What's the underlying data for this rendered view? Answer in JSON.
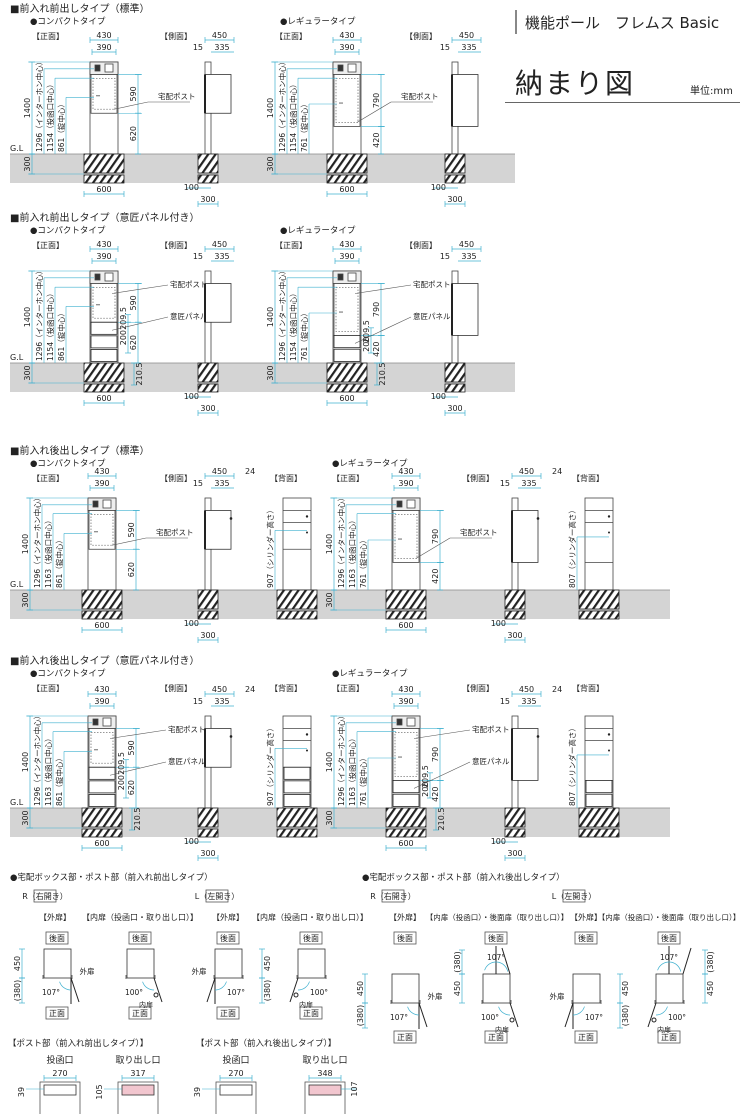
{
  "header": {
    "product": "機能ポール　フレムス Basic",
    "title": "納まり図",
    "unit": "単位:mm"
  },
  "common": {
    "front": "【正面】",
    "side": "【側面】",
    "back": "【背面】",
    "gl": "G.L",
    "w_outer": "430",
    "w_inner": "390",
    "height": "1400",
    "depth": "300",
    "foundation": "600",
    "side_total": "450",
    "side_a": "15",
    "side_b": "335",
    "side_handle": "24",
    "side_base_a": "100",
    "side_base_b": "300",
    "post": "宅配ポスト",
    "panel": "意匠パネル",
    "panel_a": "209.5",
    "panel_b": "200",
    "panel_c": "210.5"
  },
  "sections": [
    {
      "title": "■前入れ前出しタイプ（標準）",
      "types": [
        {
          "name": "●コンパクトタイプ",
          "dims": [
            "1296（インターホン中心）",
            "1154（投函口中心）",
            "861（錠中心）"
          ],
          "box": "590",
          "lower": "620"
        },
        {
          "name": "●レギュラータイプ",
          "dims": [
            "1296（インターホン中心）",
            "1154（投函口中心）",
            "761（錠中心）"
          ],
          "box": "790",
          "lower": "420"
        }
      ]
    },
    {
      "title": "■前入れ前出しタイプ（意匠パネル付き）",
      "types": [
        {
          "name": "●コンパクトタイプ",
          "dims": [
            "1296（インターホン中心）",
            "1154（投函口中心）",
            "861（錠中心）"
          ],
          "box": "590",
          "lower": "620"
        },
        {
          "name": "●レギュラータイプ",
          "dims": [
            "1296（インターホン中心）",
            "1154（投函口中心）",
            "761（錠中心）"
          ],
          "box": "790",
          "lower": "420"
        }
      ]
    },
    {
      "title": "■前入れ後出しタイプ（標準）",
      "types": [
        {
          "name": "●コンパクトタイプ",
          "dims": [
            "1296（インターホン中心）",
            "1163（投函口中心）",
            "861（錠中心）"
          ],
          "box": "590",
          "lower": "620",
          "cylinder": "907（シリンダー高さ）"
        },
        {
          "name": "●レギュラータイプ",
          "dims": [
            "1296（インターホン中心）",
            "1163（投函口中心）",
            "761（錠中心）"
          ],
          "box": "790",
          "lower": "420",
          "cylinder": "807（シリンダー高さ）"
        }
      ]
    },
    {
      "title": "■前入れ後出しタイプ（意匠パネル付き）",
      "types": [
        {
          "name": "●コンパクトタイプ",
          "dims": [
            "1296（インターホン中心）",
            "1163（投函口中心）",
            "861（錠中心）"
          ],
          "box": "590",
          "lower": "620",
          "cylinder": "907（シリンダー高さ）"
        },
        {
          "name": "●レギュラータイプ",
          "dims": [
            "1296（インターホン中心）",
            "1163（投函口中心）",
            "761（錠中心）"
          ],
          "box": "790",
          "lower": "420",
          "cylinder": "807（シリンダー高さ）"
        }
      ]
    }
  ],
  "details": {
    "front_front_title": "●宅配ボックス部・ポスト部（前入れ前出しタイプ）",
    "front_back_title": "●宅配ボックス部・ポスト部（前入れ後出しタイプ）",
    "right_open": "R（右開き）",
    "left_open": "L（左開き）",
    "outer_door": "【外扉】",
    "inner_door_ff": "【内扉（投函口・取り出し口）】",
    "inner_door_fb": "【内扉（投函口）・後面扉（取り出し口）】",
    "rear": "後面",
    "front": "正面",
    "depth": "450",
    "swing": "(380)",
    "angle_outer": "107°",
    "angle_inner": "100°",
    "outer_label": "外扉",
    "inner_label": "内扉",
    "post_ff_title": "【ポスト部（前入れ前出しタイプ）】",
    "post_fb_title": "【ポスト部（前入れ後出しタイプ）】",
    "slot_in": "投函口",
    "slot_out": "取り出し口",
    "ff_in_w": "270",
    "ff_in_h": "39",
    "ff_out_w": "317",
    "ff_out_h": "105",
    "fb_in_w": "270",
    "fb_in_h": "39",
    "fb_out_w": "348",
    "fb_out_h": "107"
  },
  "colors": {
    "dimension": "#3fb0cf",
    "line": "#444444",
    "ground": "#d4d4d4",
    "slot": "#f2c6cf"
  }
}
